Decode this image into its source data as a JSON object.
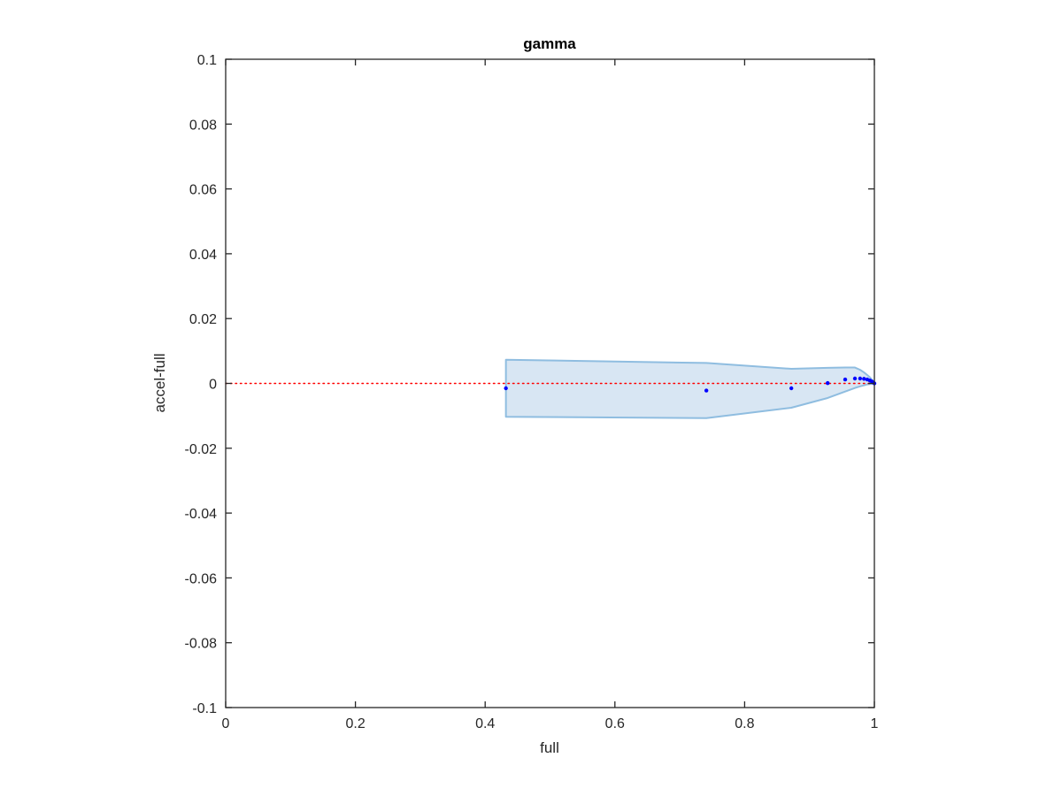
{
  "chart_data": {
    "type": "scatter",
    "title": "gamma",
    "xlabel": "full",
    "ylabel": "accel-full",
    "xlim": [
      0,
      1
    ],
    "ylim": [
      -0.1,
      0.1
    ],
    "x_ticks": [
      0,
      0.2,
      0.4,
      0.6,
      0.8,
      1
    ],
    "x_tick_labels": [
      "0",
      "0.2",
      "0.4",
      "0.6",
      "0.8",
      "1"
    ],
    "y_ticks": [
      -0.1,
      -0.08,
      -0.06,
      -0.04,
      -0.02,
      0,
      0.02,
      0.04,
      0.06,
      0.08,
      0.1
    ],
    "y_tick_labels": [
      "-0.1",
      "-0.08",
      "-0.06",
      "-0.04",
      "-0.02",
      "0",
      "0.02",
      "0.04",
      "0.06",
      "0.08",
      "0.1"
    ],
    "grid": false,
    "reference_line": {
      "y": 0,
      "style": "dotted",
      "color": "#ff0000"
    },
    "points": {
      "color": "#0000ff",
      "x": [
        0.432,
        0.741,
        0.872,
        0.928,
        0.955,
        0.97,
        0.978,
        0.984,
        0.989,
        0.993,
        0.996,
        0.998,
        1.0
      ],
      "y": [
        -0.0015,
        -0.0022,
        -0.0015,
        0.0001,
        0.0012,
        0.0015,
        0.0015,
        0.0014,
        0.0012,
        0.0009,
        0.0006,
        0.0003,
        0.0
      ]
    },
    "band": {
      "fill": "#d8e6f3",
      "stroke": "#8fbde0",
      "x": [
        0.432,
        0.741,
        0.872,
        0.928,
        0.955,
        0.97,
        0.978,
        0.984,
        0.989,
        0.993,
        0.996,
        0.998,
        1.0
      ],
      "upper": [
        0.0073,
        0.0063,
        0.0045,
        0.0048,
        0.0049,
        0.0049,
        0.0042,
        0.0034,
        0.0026,
        0.0019,
        0.0012,
        0.0006,
        0.0
      ],
      "lower": [
        -0.0103,
        -0.0107,
        -0.0075,
        -0.0045,
        -0.0025,
        -0.0014,
        -0.0009,
        -0.0006,
        -0.0003,
        -0.0002,
        -0.0001,
        -5e-05,
        0.0
      ]
    }
  }
}
